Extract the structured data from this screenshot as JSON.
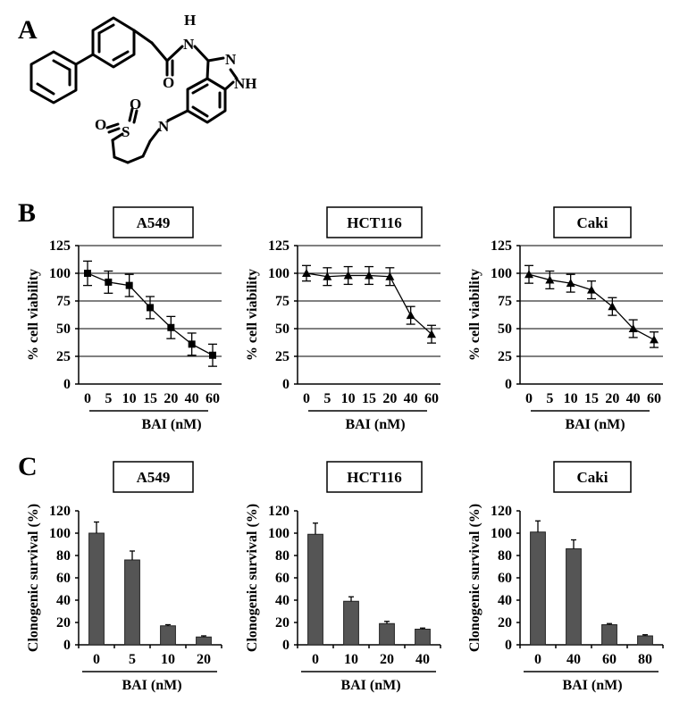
{
  "panels": {
    "a": "A",
    "b": "B",
    "c": "C"
  },
  "structure": {
    "atoms": {
      "h": "H",
      "n_amide": "N",
      "o_carbonyl": "O",
      "n_pyrazole": "N",
      "nh": "NH",
      "n_sultam": "N",
      "s": "S",
      "o1": "O",
      "o2": "O"
    }
  },
  "chart_data": [
    {
      "type": "line",
      "title": "A549",
      "xlabel": "BAI (nM)",
      "ylabel": "% cell viability",
      "categories": [
        "0",
        "5",
        "10",
        "15",
        "20",
        "40",
        "60"
      ],
      "values": [
        100,
        92,
        89,
        69,
        51,
        36,
        26
      ],
      "errors": [
        11,
        10,
        10,
        10,
        10,
        10,
        10
      ],
      "ylim": [
        0,
        125
      ],
      "yticks": [
        0,
        25,
        50,
        75,
        100,
        125
      ],
      "marker": "square",
      "grid": true
    },
    {
      "type": "line",
      "title": "HCT116",
      "xlabel": "BAI (nM)",
      "ylabel": "% cell viability",
      "categories": [
        "0",
        "5",
        "10",
        "15",
        "20",
        "40",
        "60"
      ],
      "values": [
        100,
        97,
        98,
        98,
        97,
        62,
        45
      ],
      "errors": [
        7,
        8,
        8,
        8,
        8,
        8,
        8
      ],
      "ylim": [
        0,
        125
      ],
      "yticks": [
        0,
        25,
        50,
        75,
        100,
        125
      ],
      "marker": "triangle",
      "grid": true
    },
    {
      "type": "line",
      "title": "Caki",
      "xlabel": "BAI (nM)",
      "ylabel": "% cell viability",
      "categories": [
        "0",
        "5",
        "10",
        "15",
        "20",
        "40",
        "60"
      ],
      "values": [
        99,
        94,
        91,
        85,
        70,
        50,
        40
      ],
      "errors": [
        8,
        8,
        8,
        8,
        8,
        8,
        7
      ],
      "ylim": [
        0,
        125
      ],
      "yticks": [
        0,
        25,
        50,
        75,
        100,
        125
      ],
      "marker": "triangle",
      "grid": true
    },
    {
      "type": "bar",
      "title": "A549",
      "xlabel": "BAI (nM)",
      "ylabel": "Clonogenic survival (%)",
      "categories": [
        "0",
        "5",
        "10",
        "20"
      ],
      "values": [
        100,
        76,
        17,
        7
      ],
      "errors": [
        10,
        8,
        1,
        1
      ],
      "ylim": [
        0,
        120
      ],
      "yticks": [
        0,
        20,
        40,
        60,
        80,
        100,
        120
      ],
      "grid": false
    },
    {
      "type": "bar",
      "title": "HCT116",
      "xlabel": "BAI (nM)",
      "ylabel": "Clonogenic survival (%)",
      "categories": [
        "0",
        "10",
        "20",
        "40"
      ],
      "values": [
        99,
        39,
        19,
        14
      ],
      "errors": [
        10,
        4,
        2,
        1
      ],
      "ylim": [
        0,
        120
      ],
      "yticks": [
        0,
        20,
        40,
        60,
        80,
        100,
        120
      ],
      "grid": false
    },
    {
      "type": "bar",
      "title": "Caki",
      "xlabel": "BAI (nM)",
      "ylabel": "Clonogenic survival (%)",
      "categories": [
        "0",
        "40",
        "60",
        "80"
      ],
      "values": [
        101,
        86,
        18,
        8
      ],
      "errors": [
        10,
        8,
        1,
        1
      ],
      "ylim": [
        0,
        120
      ],
      "yticks": [
        0,
        20,
        40,
        60,
        80,
        100,
        120
      ],
      "grid": false
    }
  ]
}
